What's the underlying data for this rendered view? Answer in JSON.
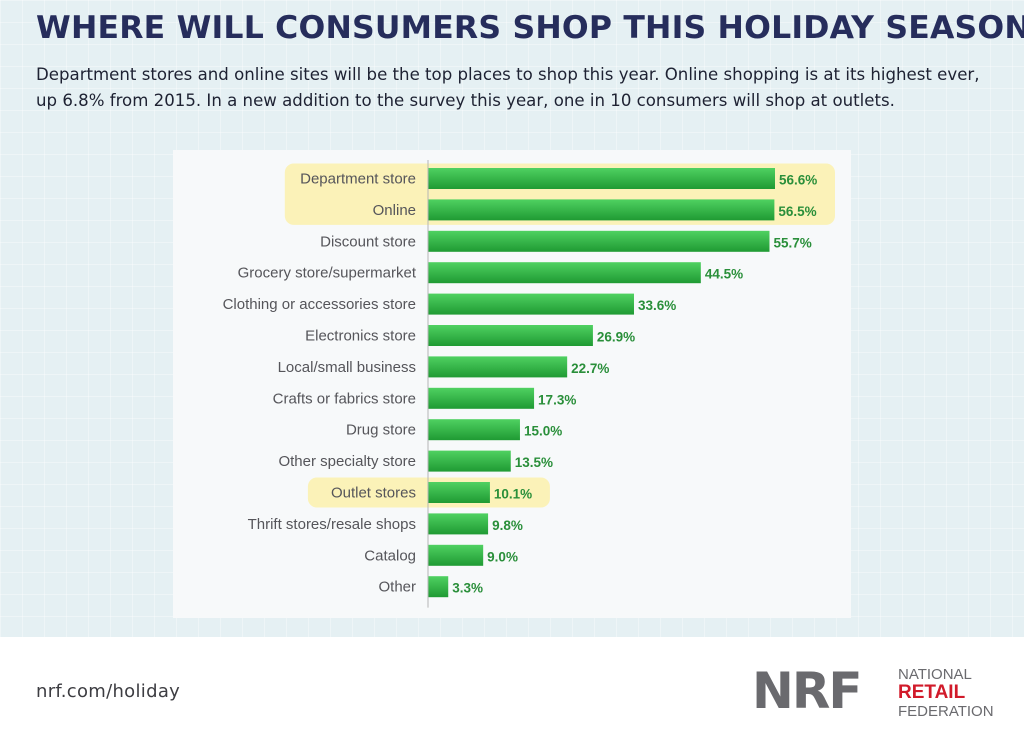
{
  "header": {
    "title": "WHERE WILL CONSUMERS SHOP THIS HOLIDAY SEASON?",
    "subtitle": "Department stores and online sites will be the top places to shop this year. Online shopping is at its highest ever, up 6.8% from 2015. In a new addition to the survey this year, one in 10 consumers will shop at outlets."
  },
  "chart_data": {
    "type": "bar",
    "orientation": "horizontal",
    "categories": [
      "Department store",
      "Online",
      "Discount store",
      "Grocery store/supermarket",
      "Clothing or accessories store",
      "Electronics store",
      "Local/small business",
      "Crafts or fabrics store",
      "Drug store",
      "Other specialty store",
      "Outlet stores",
      "Thrift stores/resale shops",
      "Catalog",
      "Other"
    ],
    "values": [
      56.6,
      56.5,
      55.7,
      44.5,
      33.6,
      26.9,
      22.7,
      17.3,
      15.0,
      13.5,
      10.1,
      9.8,
      9.0,
      3.3
    ],
    "value_labels": [
      "56.6%",
      "56.5%",
      "55.7%",
      "44.5%",
      "33.6%",
      "26.9%",
      "22.7%",
      "17.3%",
      "15.0%",
      "13.5%",
      "10.1%",
      "9.8%",
      "9.0%",
      "3.3%"
    ],
    "highlighted": [
      "Department store",
      "Online",
      "Outlet stores"
    ],
    "xlim": [
      0,
      56.6
    ],
    "grid": false,
    "colors": {
      "bar_light": "#4fd161",
      "bar_dark": "#1f9a33",
      "value_label": "#2a8f3a",
      "category_label": "#55555a",
      "highlight": "#fbf2b8",
      "axis": "#b5b5b5"
    }
  },
  "footer": {
    "url": "nrf.com/holiday",
    "logo": {
      "mark": "NRF",
      "line1": "NATIONAL",
      "line2": "RETAIL",
      "line3": "FEDERATION"
    }
  }
}
